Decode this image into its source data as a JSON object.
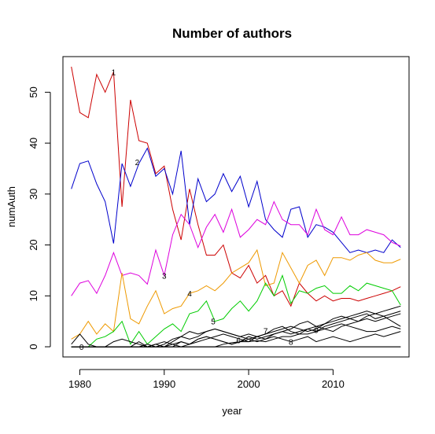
{
  "chart_data": {
    "type": "line",
    "title": "Number of authors",
    "xlabel": "year",
    "ylabel": "numAuth",
    "xlim": [
      1978,
      2019
    ],
    "ylim": [
      -2,
      57
    ],
    "xticks": [
      1980,
      1990,
      2000,
      2010
    ],
    "yticks": [
      0,
      10,
      20,
      30,
      40,
      50
    ],
    "grid": false,
    "legend": "none",
    "x": [
      1979,
      1980,
      1981,
      1982,
      1983,
      1984,
      1985,
      1986,
      1987,
      1988,
      1989,
      1990,
      1991,
      1992,
      1993,
      1994,
      1995,
      1996,
      1997,
      1998,
      1999,
      2000,
      2001,
      2002,
      2003,
      2004,
      2005,
      2006,
      2007,
      2008,
      2009,
      2010,
      2011,
      2012,
      2013,
      2014,
      2015,
      2016,
      2017,
      2018
    ],
    "series": [
      {
        "color": "#cc0000",
        "values": [
          55,
          46,
          45,
          53.5,
          50,
          54,
          27.5,
          48.5,
          40.5,
          40,
          34,
          35.5,
          27,
          21,
          31,
          24,
          18,
          18,
          20,
          14.5,
          13.5,
          16,
          12.5,
          14,
          10,
          11,
          8,
          12.5,
          10.5,
          9,
          10,
          9,
          9.5,
          9.5,
          9,
          9.5,
          10,
          10.5,
          11,
          11.8
        ]
      },
      {
        "color": "#0000cc",
        "values": [
          31,
          36,
          36.5,
          32,
          28.5,
          20.3,
          36,
          31.5,
          36,
          39,
          33.5,
          35,
          30,
          38.5,
          24,
          33,
          28.5,
          30,
          34,
          30.5,
          33.5,
          27.5,
          32.5,
          25,
          23,
          21.5,
          27,
          27.5,
          21.5,
          24,
          23.5,
          22.5,
          20.5,
          18.5,
          19,
          18.5,
          19,
          18.5,
          21,
          19.5
        ]
      },
      {
        "color": "#dd00dd",
        "values": [
          10,
          12.5,
          13,
          10.5,
          14,
          18.5,
          14,
          14.5,
          14,
          12.3,
          19,
          14,
          22,
          26,
          24,
          19.5,
          23.5,
          26,
          22.5,
          27,
          21.5,
          23,
          25,
          24,
          28.5,
          25,
          24,
          24,
          22,
          27,
          23,
          22,
          25.5,
          22,
          22,
          23,
          22.5,
          22,
          20.5,
          19.8
        ]
      },
      {
        "color": "#ee9900",
        "values": [
          1.5,
          2.5,
          5,
          2.5,
          4.5,
          3,
          14.5,
          5.5,
          4.5,
          8,
          11,
          6.5,
          7.5,
          8,
          10.5,
          11,
          12,
          11,
          12.5,
          14.5,
          15.5,
          16.5,
          19,
          12,
          12.5,
          18.5,
          15.5,
          12.5,
          16,
          17,
          14,
          17.5,
          17.5,
          17,
          18,
          18.5,
          17,
          16.5,
          16.5,
          17.2
        ]
      },
      {
        "color": "#00cc00",
        "values": [
          0,
          0,
          0,
          1.5,
          2,
          3,
          5,
          0.5,
          3,
          0.5,
          2,
          3.5,
          4.5,
          3,
          6.5,
          7,
          9,
          5,
          5.5,
          7.5,
          9,
          7,
          9,
          12.5,
          10,
          14,
          8.5,
          11,
          10.5,
          11.5,
          12,
          10.5,
          10.5,
          12,
          11,
          12.5,
          12,
          11.5,
          11,
          8.2
        ]
      },
      {
        "color": "#000000",
        "values": [
          0,
          0,
          0,
          0,
          0,
          0,
          0,
          0,
          0,
          0,
          0,
          0,
          0,
          0,
          0,
          0,
          0,
          0,
          0,
          0,
          0,
          0,
          0,
          0,
          0,
          0,
          0,
          0,
          0,
          0,
          0,
          0,
          0,
          0,
          0,
          0,
          0,
          0,
          0,
          0
        ]
      },
      {
        "color": "#000000",
        "values": [
          0,
          0,
          0,
          0,
          0,
          0,
          0,
          0,
          0,
          0,
          0,
          0,
          0,
          0,
          0,
          0,
          0,
          0,
          0.5,
          0.8,
          1,
          1,
          1.2,
          1,
          1.5,
          2,
          2,
          2.5,
          2.5,
          3,
          3.5,
          3,
          4,
          4.5,
          5,
          5.5,
          5,
          5.5,
          6,
          6.5
        ]
      },
      {
        "color": "#000000",
        "values": [
          0,
          0,
          0,
          0,
          0,
          0,
          0,
          0,
          0,
          0,
          0,
          0,
          0,
          1,
          0.5,
          1.5,
          2,
          1.5,
          1,
          0.5,
          1,
          2,
          1.5,
          2,
          2.5,
          3,
          2.5,
          3,
          3.5,
          3,
          4,
          4.5,
          5,
          5.5,
          5,
          6,
          6.5,
          7,
          7.5,
          8
        ]
      },
      {
        "color": "#000000",
        "values": [
          0,
          0,
          0,
          0,
          0,
          0,
          0,
          0,
          0,
          0,
          0,
          0,
          0.5,
          1,
          0.5,
          1,
          1.5,
          2,
          2.5,
          2,
          1.5,
          1,
          2,
          2.5,
          3,
          3.5,
          4,
          3.5,
          3,
          3.5,
          4.5,
          5,
          5.5,
          6,
          6.5,
          7,
          6.5,
          6,
          6.5,
          7
        ]
      },
      {
        "color": "#000000",
        "values": [
          0,
          0,
          0,
          0,
          0,
          0,
          0,
          0,
          0,
          0.5,
          0,
          0.5,
          1.5,
          2,
          3,
          2.5,
          3,
          3.5,
          3,
          2.5,
          2,
          2.5,
          2,
          1.5,
          2.5,
          3,
          3.5,
          4.5,
          5,
          4,
          4.5,
          5.5,
          6,
          5.5,
          6,
          6.5,
          5.5,
          6,
          5,
          4
        ]
      },
      {
        "color": "#000000",
        "values": [
          0,
          0,
          0,
          0,
          0,
          0,
          0,
          0,
          0,
          0,
          0.5,
          1,
          0.5,
          0,
          0.5,
          1.5,
          2,
          1.5,
          1,
          0.5,
          1,
          1.5,
          2,
          2.5,
          3.5,
          4,
          3,
          2.5,
          3.5,
          4,
          3.5,
          4,
          4.5,
          4,
          3.5,
          3,
          3,
          3.5,
          4,
          3.5
        ]
      },
      {
        "color": "#000000",
        "values": [
          0,
          0,
          0,
          0,
          0,
          1,
          1.5,
          1,
          0.5,
          0,
          0.5,
          0,
          1,
          2,
          1.5,
          2,
          3,
          3.5,
          3,
          2.5,
          2,
          1.5,
          1,
          1.5,
          2,
          1.5,
          1,
          1.5,
          2,
          1,
          1.5,
          2,
          1.5,
          1,
          1.5,
          2,
          2.5,
          2,
          2.5,
          3
        ]
      },
      {
        "color": "#000000",
        "values": [
          0.5,
          2.5,
          0.5,
          0,
          0,
          0,
          0,
          0,
          1,
          0,
          0,
          0,
          0,
          0,
          0,
          0,
          0,
          0,
          0,
          0,
          0,
          0,
          0,
          0,
          0,
          0,
          0,
          0,
          0,
          0,
          0,
          0,
          0,
          0,
          0,
          0,
          0,
          0,
          0,
          0
        ]
      }
    ],
    "annotations": [
      {
        "text": "0",
        "x": 1980.2,
        "y": 0
      },
      {
        "text": "1",
        "x": 1984,
        "y": 54
      },
      {
        "text": "2",
        "x": 1986.8,
        "y": 36.3
      },
      {
        "text": "3",
        "x": 1990,
        "y": 14
      },
      {
        "text": "4",
        "x": 1993,
        "y": 10.5
      },
      {
        "text": "5",
        "x": 1995.8,
        "y": 5
      },
      {
        "text": "6",
        "x": 1998.8,
        "y": 1.3
      },
      {
        "text": "7",
        "x": 2002,
        "y": 3.2
      },
      {
        "text": "8",
        "x": 2005,
        "y": 1
      },
      {
        "text": "9",
        "x": 2008,
        "y": 3.3
      }
    ]
  }
}
